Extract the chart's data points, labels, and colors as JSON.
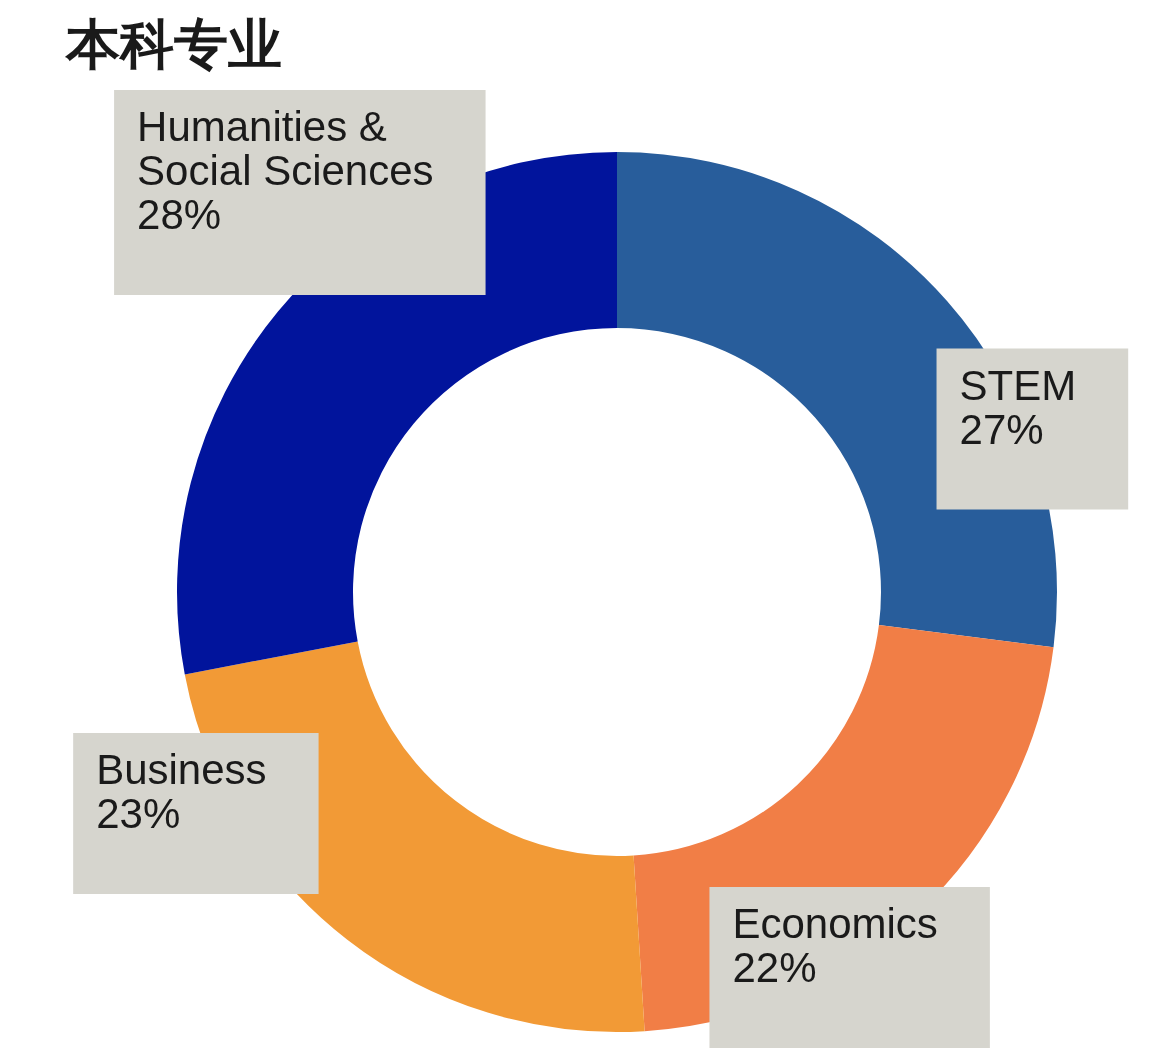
{
  "chart_data": {
    "type": "donut",
    "title": "本科专业",
    "categories": [
      "STEM",
      "Economics",
      "Business",
      "Humanities & Social Sciences"
    ],
    "values": [
      27,
      22,
      23,
      28
    ],
    "colors": [
      "#285d9b",
      "#f17e46",
      "#f29a36",
      "#01149c"
    ],
    "value_labels": [
      "27%",
      "22%",
      "23%",
      "28%"
    ]
  }
}
